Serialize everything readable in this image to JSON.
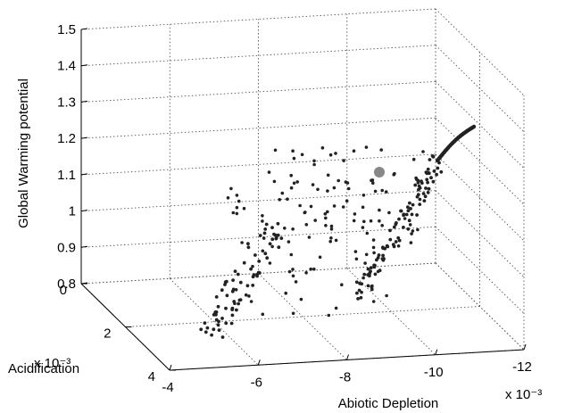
{
  "chart_data": {
    "type": "scatter",
    "zlabel": "Global Warming potential",
    "xlabel": "Abiotic Depletion",
    "ylabel": "Acidification",
    "x_exponent_label": "x 10⁻³",
    "y_exponent_label": "x 10⁻³",
    "x_ticks": [
      "-4",
      "-6",
      "-8",
      "-10",
      "-12"
    ],
    "y_ticks": [
      "0",
      "2",
      "4"
    ],
    "z_ticks": [
      "0.8",
      "0.9",
      "1",
      "1.1",
      "1.2",
      "1.3",
      "1.4",
      "1.5"
    ],
    "xlim": [
      -12,
      -4
    ],
    "ylim": [
      0,
      4
    ],
    "zlim": [
      0.8,
      1.5
    ],
    "grid": true,
    "point_color": "#222222",
    "highlight_color": "#888888",
    "highlight_point": {
      "x": -9.6,
      "y": 0.5,
      "z": 1.1
    }
  }
}
